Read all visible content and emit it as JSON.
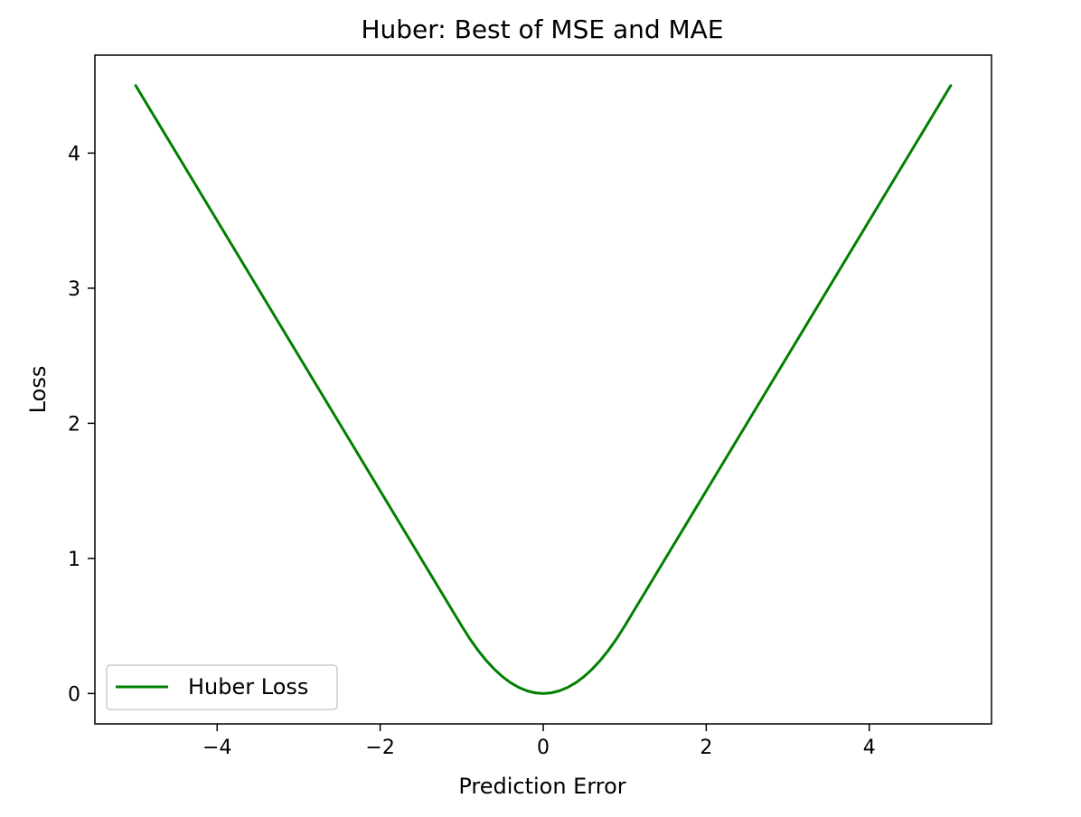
{
  "chart_data": {
    "type": "line",
    "title": "Huber: Best of MSE and MAE",
    "xlabel": "Prediction Error",
    "ylabel": "Loss",
    "xlim": [
      -5.5,
      5.5
    ],
    "ylim": [
      -0.225,
      4.725
    ],
    "x_ticks": [
      -4,
      -2,
      0,
      2,
      4
    ],
    "x_tick_labels": [
      "−4",
      "−2",
      "0",
      "2",
      "4"
    ],
    "y_ticks": [
      0,
      1,
      2,
      3,
      4
    ],
    "y_tick_labels": [
      "0",
      "1",
      "2",
      "3",
      "4"
    ],
    "grid": false,
    "legend_position": "lower-left",
    "series": [
      {
        "name": "Huber Loss",
        "color": "#008000",
        "x": [
          -5,
          -4.5,
          -4,
          -3.5,
          -3,
          -2.5,
          -2,
          -1.5,
          -1.25,
          -1,
          -0.9,
          -0.8,
          -0.7,
          -0.6,
          -0.5,
          -0.4,
          -0.3,
          -0.2,
          -0.1,
          0,
          0.1,
          0.2,
          0.3,
          0.4,
          0.5,
          0.6,
          0.7,
          0.8,
          0.9,
          1,
          1.25,
          1.5,
          2,
          2.5,
          3,
          3.5,
          4,
          4.5,
          5
        ],
        "y": [
          4.5,
          4.0,
          3.5,
          3.0,
          2.5,
          2.0,
          1.5,
          1.0,
          0.75,
          0.5,
          0.405,
          0.32,
          0.245,
          0.18,
          0.125,
          0.08,
          0.045,
          0.02,
          0.005,
          0,
          0.005,
          0.02,
          0.045,
          0.08,
          0.125,
          0.18,
          0.245,
          0.32,
          0.405,
          0.5,
          0.75,
          1.0,
          1.5,
          2.0,
          2.5,
          3.0,
          3.5,
          4.0,
          4.5
        ]
      }
    ]
  }
}
